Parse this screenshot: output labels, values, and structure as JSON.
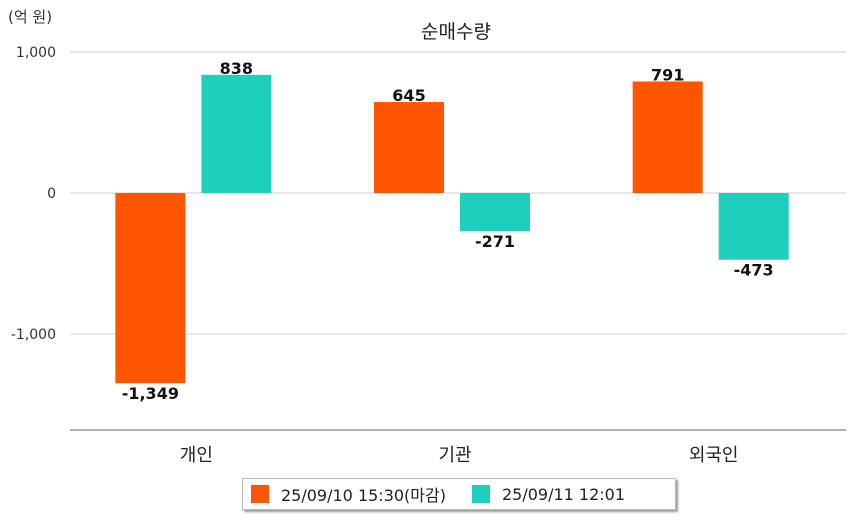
{
  "unit_label": "(억 원)",
  "chart_data": {
    "type": "bar",
    "title": "순매수량",
    "categories": [
      "개인",
      "기관",
      "외국인"
    ],
    "series": [
      {
        "name": "25/09/10 15:30(마감)",
        "color": "#ff5500",
        "values": [
          -1349,
          645,
          791
        ]
      },
      {
        "name": "25/09/11 12:01",
        "color": "#1ecfbd",
        "values": [
          838,
          -271,
          -473
        ]
      }
    ],
    "ylim": [
      -1680,
      1000
    ],
    "yticks": [
      1000,
      0,
      -1000
    ],
    "ytick_labels": [
      "1,000",
      "0",
      "-1,000"
    ],
    "data_labels": [
      [
        "-1,349",
        "645",
        "791"
      ],
      [
        "838",
        "-271",
        "-473"
      ]
    ],
    "grid": true,
    "legend_position": "bottom"
  }
}
